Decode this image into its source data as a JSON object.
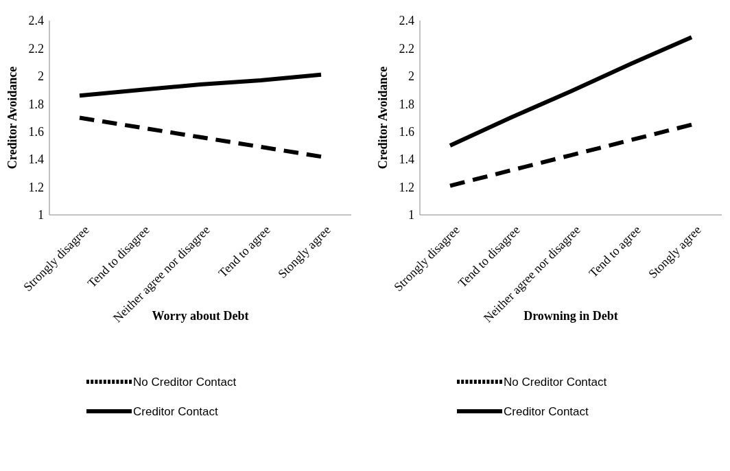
{
  "chart_data": [
    {
      "type": "line",
      "xlabel": "Worry about Debt",
      "ylabel": "Creditor Avoidance",
      "categories": [
        "Strongly disagree",
        "Tend to disagree",
        "Neither agree nor disagree",
        "Tend to agree",
        "Stongly agree"
      ],
      "ylim": [
        1,
        2.4
      ],
      "yticks": [
        1,
        1.2,
        1.4,
        1.6,
        1.8,
        2,
        2.2,
        2.4
      ],
      "grid": false,
      "legend": "bottom",
      "marker": "none",
      "series": [
        {
          "name": "No Creditor Contact",
          "color": "#000000",
          "line_style": "dashed",
          "values": [
            1.7,
            1.63,
            1.56,
            1.49,
            1.42
          ]
        },
        {
          "name": "Creditor Contact",
          "color": "#000000",
          "line_style": "solid",
          "values": [
            1.86,
            1.9,
            1.94,
            1.97,
            2.01
          ]
        }
      ]
    },
    {
      "type": "line",
      "xlabel": "Drowning in Debt",
      "ylabel": "Creditor Avoidance",
      "categories": [
        "Strongly disagree",
        "Tend to disagree",
        "Neither agree nor disagree",
        "Tend to agree",
        "Stongly agree"
      ],
      "ylim": [
        1,
        2.4
      ],
      "yticks": [
        1,
        1.2,
        1.4,
        1.6,
        1.8,
        2,
        2.2,
        2.4
      ],
      "grid": false,
      "legend": "bottom",
      "marker": "none",
      "series": [
        {
          "name": "No Creditor Contact",
          "color": "#000000",
          "line_style": "dashed",
          "values": [
            1.21,
            1.32,
            1.43,
            1.54,
            1.65
          ]
        },
        {
          "name": "Creditor Contact",
          "color": "#000000",
          "line_style": "solid",
          "values": [
            1.5,
            1.7,
            1.89,
            2.09,
            2.28
          ]
        }
      ]
    }
  ]
}
